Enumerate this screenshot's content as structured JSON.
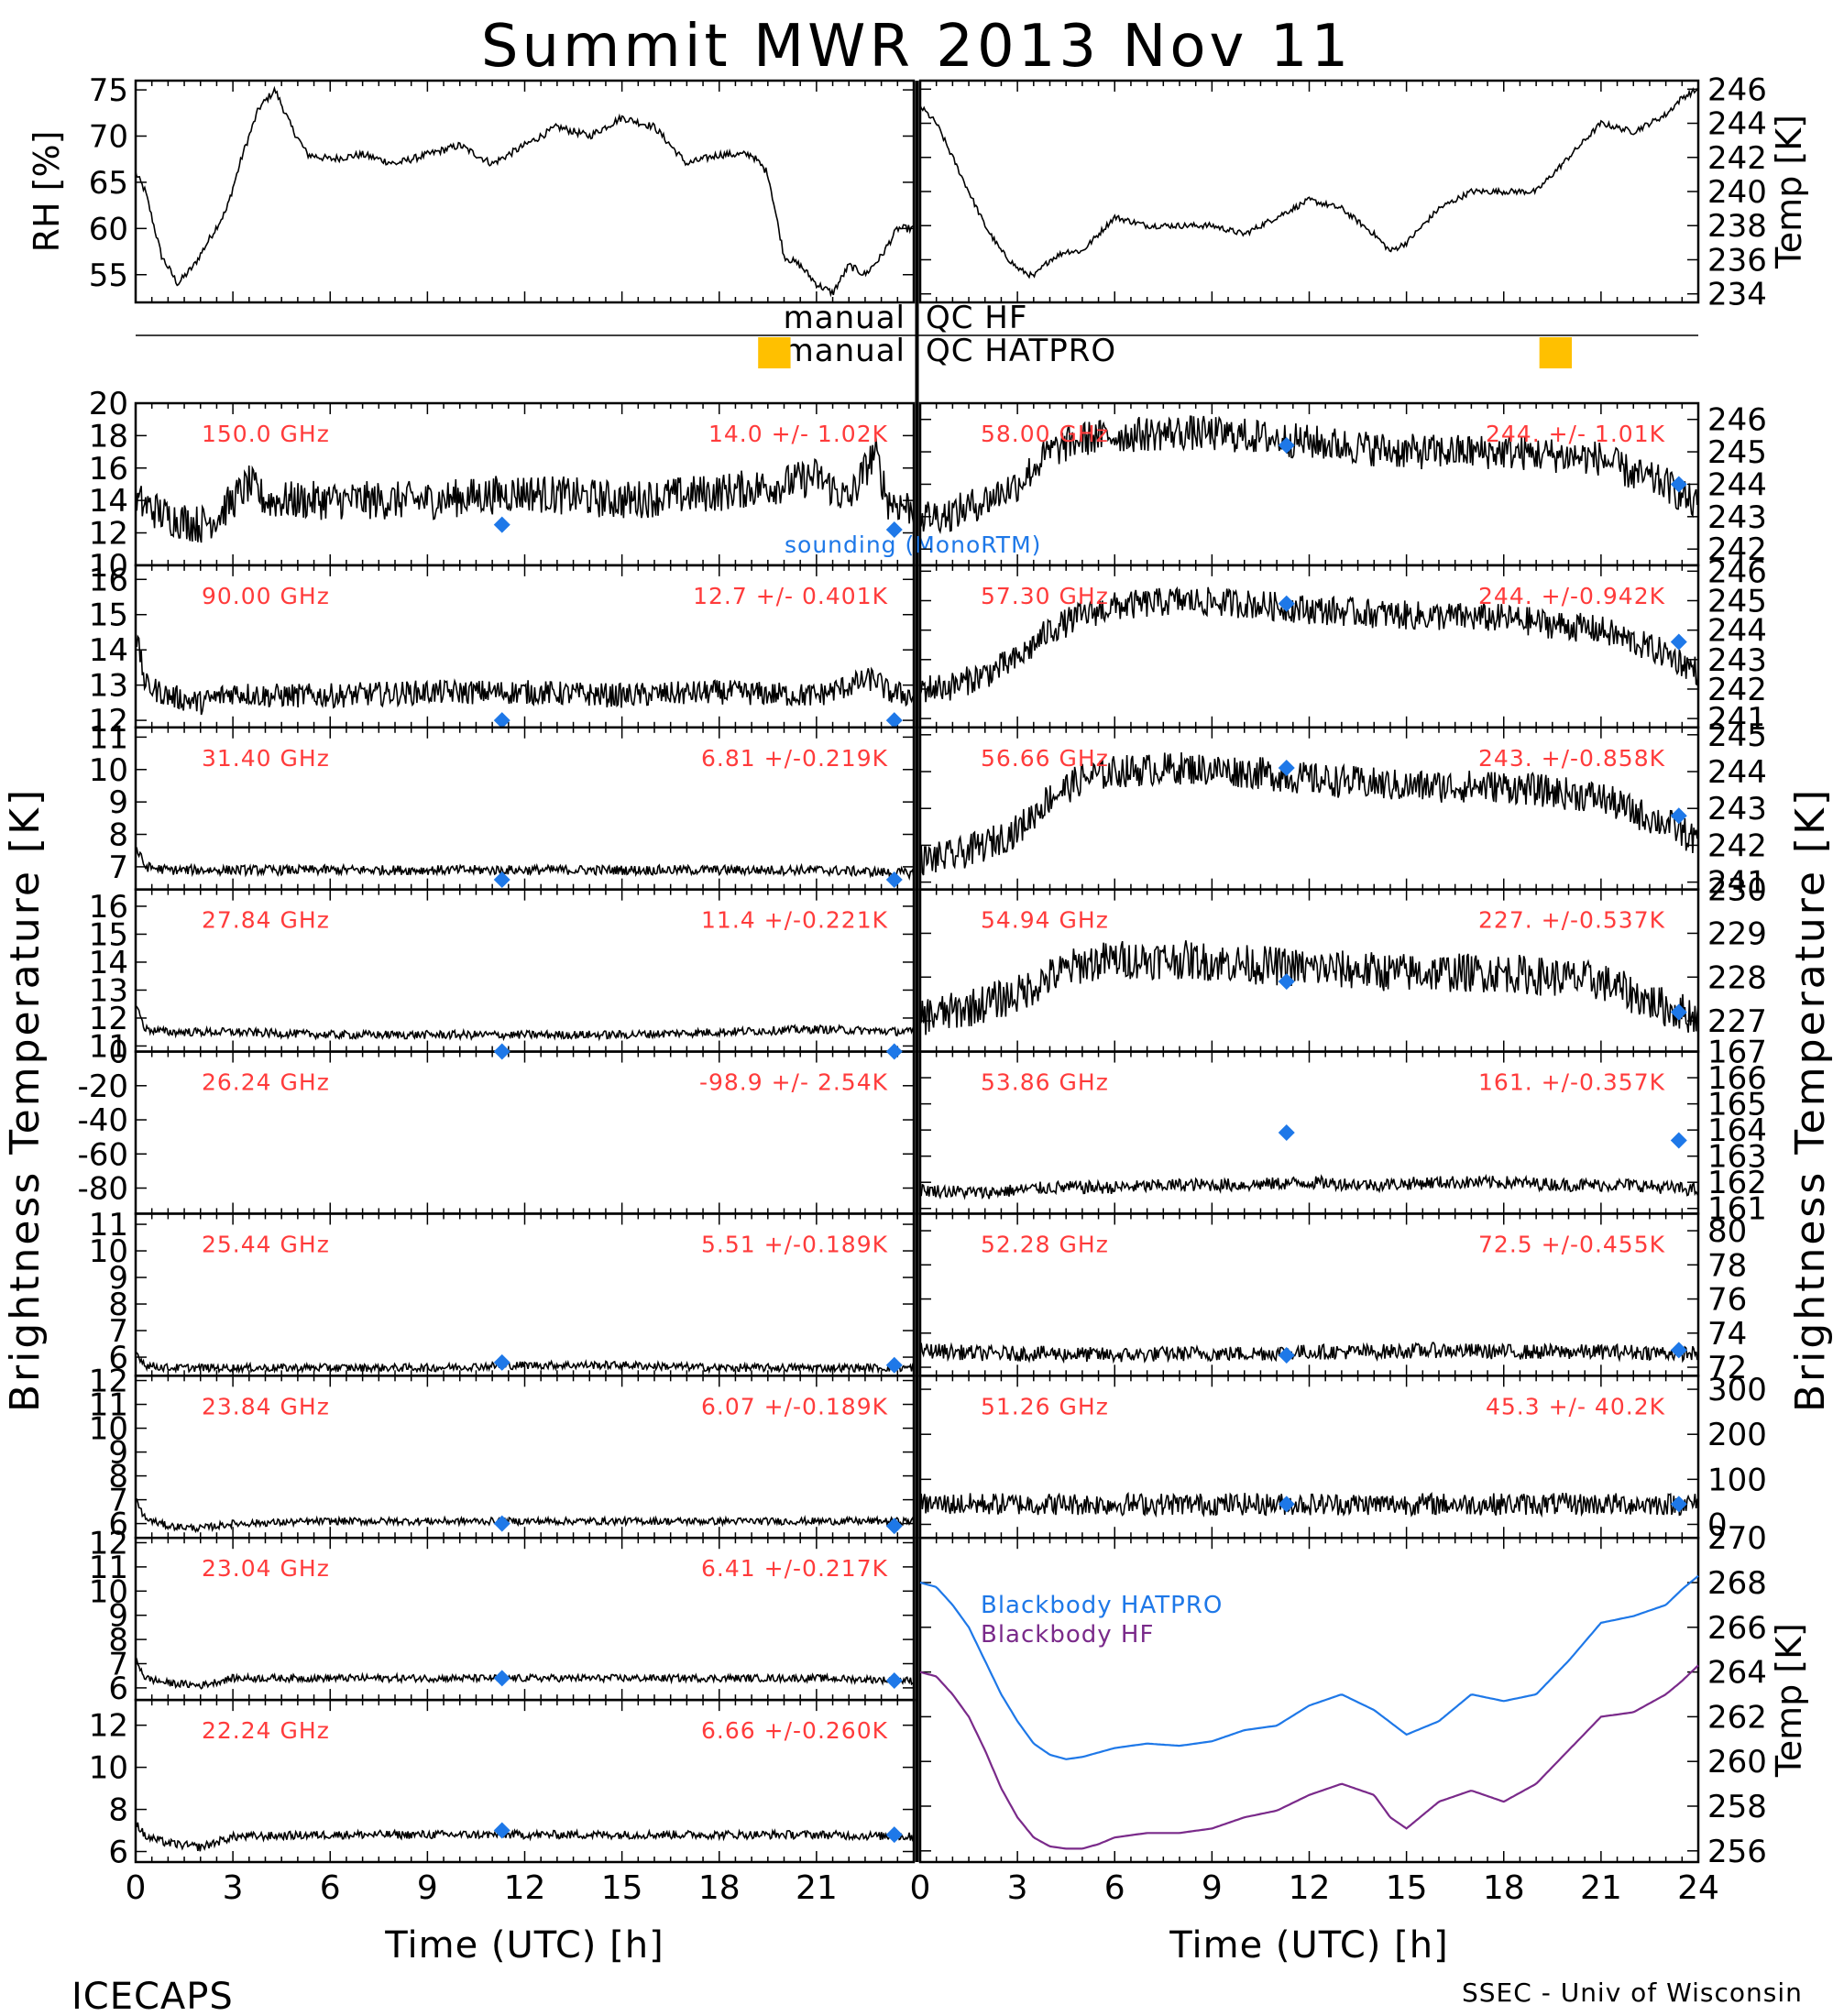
{
  "page": {
    "title": "Summit MWR 2013 Nov 11",
    "footer_left": "ICECAPS",
    "footer_right": "SSEC - Univ of Wisconsin",
    "left_axis_label": "Brightness Temperature [K]",
    "right_axis_label": "Brightness Temperature [K]",
    "colors": {
      "channel_text": "#ff3b3b",
      "sounding": "#1e78e8",
      "qc_flag": "#ffc000",
      "blackbody_hatpro": "#1e78e8",
      "blackbody_hf": "#7a2a8a"
    }
  },
  "met": {
    "rh": {
      "ylabel": "RH [%]",
      "ylim": [
        52,
        76
      ],
      "yticks": [
        55,
        60,
        65,
        70,
        75
      ],
      "x": [
        0,
        0.3,
        0.8,
        1.3,
        1.8,
        2.3,
        2.8,
        3.3,
        3.8,
        4.3,
        4.8,
        5.3,
        6,
        7,
        8,
        9,
        10,
        11,
        12,
        13,
        14,
        15,
        16,
        17,
        18,
        19,
        19.5,
        20,
        20.5,
        21,
        21.5,
        22,
        22.5,
        23,
        23.5
      ],
      "y": [
        66,
        64,
        57,
        54,
        56,
        59,
        62,
        68,
        73,
        75,
        71,
        68,
        67.5,
        68,
        67,
        68,
        69,
        67,
        69,
        71,
        70,
        72,
        71,
        67,
        68,
        68,
        66,
        57,
        56,
        54,
        53,
        56,
        55,
        57,
        60
      ]
    },
    "temp": {
      "ylabel": "Temp [K]",
      "ylim": [
        233.5,
        246.5
      ],
      "yticks": [
        234,
        236,
        238,
        240,
        242,
        244,
        246
      ],
      "x": [
        0,
        0.5,
        1,
        1.5,
        2,
        2.5,
        3,
        3.5,
        4,
        4.5,
        5,
        6,
        7,
        8,
        9,
        10,
        11,
        12,
        13,
        14,
        14.5,
        15,
        16,
        17,
        18,
        19,
        19.5,
        20,
        20.5,
        21,
        22,
        23,
        23.5,
        24
      ],
      "y": [
        245,
        244,
        242,
        240,
        238,
        236.5,
        235.5,
        235,
        236,
        236.5,
        236.5,
        238.5,
        238,
        238,
        238,
        237.5,
        238.5,
        239.5,
        239,
        237.5,
        236.5,
        237,
        239,
        240,
        240,
        240,
        241,
        242,
        243,
        244,
        243.5,
        244.5,
        245.5,
        246
      ]
    }
  },
  "qc": {
    "hf_label": "manual QC HF",
    "hatpro_label": "manual QC HATPRO",
    "hf_flags": [],
    "hatpro_flags": [
      [
        19.2,
        20.2
      ],
      [
        43.1,
        44.1
      ]
    ]
  },
  "chart_data": {
    "type": "line",
    "x_range": [
      0,
      24
    ],
    "xticks": [
      0,
      3,
      6,
      9,
      12,
      15,
      18,
      21,
      24
    ],
    "xlabel_left": "Time (UTC) [h]",
    "xlabel_right": "Time (UTC) [h]",
    "sounding_label": "sounding (MonoRTM)",
    "sounding_times": [
      11.3,
      23.4
    ],
    "left_channels": [
      {
        "freq": "150.0 GHz",
        "stat": "14.0 +/- 1.02K",
        "ylim": [
          10,
          20
        ],
        "yticks": [
          10,
          12,
          14,
          16,
          18,
          20
        ],
        "x": [
          0,
          0.5,
          1,
          2,
          2.5,
          3,
          3.5,
          4,
          6,
          9,
          12,
          15,
          18,
          20,
          21,
          22,
          22.8,
          23.2,
          24
        ],
        "y": [
          14,
          13.5,
          13,
          12.5,
          13,
          14,
          15,
          14,
          14,
          14,
          14.5,
          14,
          14.5,
          15,
          15.5,
          14,
          17,
          14,
          13.5
        ],
        "noise": 1.2,
        "sounding": [
          12.5,
          12.2
        ]
      },
      {
        "freq": "90.00 GHz",
        "stat": "12.7 +/- 0.401K",
        "ylim": [
          11.8,
          16.4
        ],
        "yticks": [
          12,
          13,
          14,
          15,
          16
        ],
        "x": [
          0,
          0.3,
          1,
          2,
          3,
          4,
          6,
          9,
          12,
          15,
          18,
          21,
          22.8,
          23.2,
          24
        ],
        "y": [
          14.5,
          13,
          12.7,
          12.5,
          12.8,
          12.7,
          12.7,
          12.8,
          12.8,
          12.7,
          12.8,
          12.7,
          13.2,
          12.8,
          12.7
        ],
        "noise": 0.35,
        "sounding": [
          12,
          12
        ]
      },
      {
        "freq": "31.40 GHz",
        "stat": "6.81 +/-0.219K",
        "ylim": [
          6.3,
          11.3
        ],
        "yticks": [
          7,
          8,
          9,
          10,
          11
        ],
        "x": [
          0,
          0.3,
          1,
          3,
          6,
          9,
          12,
          15,
          18,
          21,
          24
        ],
        "y": [
          7.6,
          7,
          6.9,
          6.9,
          6.9,
          6.9,
          6.9,
          6.9,
          6.9,
          6.9,
          6.8
        ],
        "noise": 0.15,
        "sounding": [
          6.6,
          6.6
        ]
      },
      {
        "freq": "27.84 GHz",
        "stat": "11.4 +/-0.221K",
        "ylim": [
          10.8,
          16.6
        ],
        "yticks": [
          11,
          12,
          13,
          14,
          15,
          16
        ],
        "x": [
          0,
          0.3,
          1,
          3,
          6,
          9,
          12,
          15,
          18,
          21,
          24
        ],
        "y": [
          12.5,
          11.6,
          11.5,
          11.5,
          11.4,
          11.4,
          11.4,
          11.4,
          11.5,
          11.6,
          11.5
        ],
        "noise": 0.15,
        "sounding": [
          10.7,
          10.7
        ]
      },
      {
        "freq": "26.24 GHz",
        "stat": "-98.9 +/- 2.54K",
        "ylim": [
          -95,
          0
        ],
        "yticks": [
          -80,
          -60,
          -40,
          -20,
          0
        ],
        "x": [],
        "y": [],
        "noise": 0,
        "sounding": [
          0,
          0
        ]
      },
      {
        "freq": "25.44 GHz",
        "stat": "5.51 +/-0.189K",
        "ylim": [
          5.3,
          11.4
        ],
        "yticks": [
          6,
          7,
          8,
          9,
          10,
          11
        ],
        "x": [
          0,
          0.3,
          1,
          3,
          6,
          9,
          12,
          15,
          18,
          21,
          24
        ],
        "y": [
          6.2,
          5.7,
          5.6,
          5.6,
          5.6,
          5.6,
          5.7,
          5.7,
          5.6,
          5.6,
          5.6
        ],
        "noise": 0.15,
        "sounding": [
          5.8,
          5.7
        ]
      },
      {
        "freq": "23.84 GHz",
        "stat": "6.07 +/-0.189K",
        "ylim": [
          5.4,
          12.2
        ],
        "yticks": [
          6,
          7,
          8,
          9,
          10,
          11,
          12
        ],
        "x": [
          0,
          0.3,
          1,
          2,
          3,
          6,
          9,
          12,
          15,
          18,
          21,
          24
        ],
        "y": [
          7,
          6.2,
          5.9,
          5.8,
          6,
          6.1,
          6.1,
          6.1,
          6.1,
          6.1,
          6.1,
          6.1
        ],
        "noise": 0.15,
        "sounding": [
          6,
          5.9
        ]
      },
      {
        "freq": "23.04 GHz",
        "stat": "6.41 +/-0.217K",
        "ylim": [
          5.5,
          12.2
        ],
        "yticks": [
          6,
          7,
          8,
          9,
          10,
          11,
          12
        ],
        "x": [
          0,
          0.3,
          1,
          2,
          3,
          6,
          9,
          12,
          15,
          18,
          21,
          24
        ],
        "y": [
          7.2,
          6.4,
          6.2,
          6.1,
          6.4,
          6.4,
          6.4,
          6.4,
          6.4,
          6.4,
          6.4,
          6.3
        ],
        "noise": 0.15,
        "sounding": [
          6.4,
          6.3
        ]
      },
      {
        "freq": "22.24 GHz",
        "stat": "6.66 +/-0.260K",
        "ylim": [
          5.5,
          13.2
        ],
        "yticks": [
          6,
          8,
          10,
          12
        ],
        "x": [
          0,
          0.3,
          1,
          2,
          3,
          6,
          9,
          12,
          15,
          18,
          21,
          24
        ],
        "y": [
          7.4,
          6.7,
          6.4,
          6.2,
          6.7,
          6.8,
          6.8,
          6.8,
          6.8,
          6.8,
          6.8,
          6.7
        ],
        "noise": 0.2,
        "sounding": [
          7,
          6.8
        ]
      }
    ],
    "right_channels": [
      {
        "freq": "58.00 GHz",
        "stat": "244. +/- 1.01K",
        "ylim": [
          241.5,
          246.5
        ],
        "yticks": [
          242,
          243,
          244,
          245,
          246
        ],
        "x": [
          0,
          1,
          2,
          3,
          4,
          5,
          6,
          8,
          10,
          12,
          15,
          18,
          21,
          22,
          23,
          24
        ],
        "y": [
          243,
          243.1,
          243.5,
          244,
          245,
          245.4,
          245.5,
          245.6,
          245.5,
          245.3,
          245,
          245,
          244.8,
          244.3,
          244,
          243.3
        ],
        "noise": 0.55,
        "sounding": [
          245.2,
          244
        ]
      },
      {
        "freq": "57.30 GHz",
        "stat": "244. +/-0.942K",
        "ylim": [
          240.7,
          246.2
        ],
        "yticks": [
          241,
          242,
          243,
          244,
          245,
          246
        ],
        "x": [
          0,
          1,
          2,
          3,
          4,
          5,
          6,
          8,
          10,
          12,
          15,
          18,
          21,
          22,
          23,
          24
        ],
        "y": [
          242,
          242.1,
          242.5,
          243,
          244,
          244.5,
          244.8,
          245,
          244.9,
          244.7,
          244.5,
          244.4,
          244,
          243.6,
          243.2,
          242.6
        ],
        "noise": 0.5,
        "sounding": [
          244.9,
          243.6
        ]
      },
      {
        "freq": "56.66 GHz",
        "stat": "243. +/-0.858K",
        "ylim": [
          240.8,
          245.2
        ],
        "yticks": [
          241,
          242,
          243,
          244,
          245
        ],
        "x": [
          0,
          1,
          2,
          3,
          4,
          5,
          6,
          8,
          10,
          12,
          15,
          18,
          21,
          22,
          23,
          24
        ],
        "y": [
          241.6,
          241.7,
          242,
          242.4,
          243.3,
          243.8,
          244,
          244.1,
          244,
          243.8,
          243.6,
          243.6,
          243.3,
          242.9,
          242.6,
          242.1
        ],
        "noise": 0.45,
        "sounding": [
          244.1,
          242.8
        ]
      },
      {
        "freq": "54.94 GHz",
        "stat": "227. +/-0.537K",
        "ylim": [
          226.3,
          230
        ],
        "yticks": [
          227,
          228,
          229,
          230
        ],
        "x": [
          0,
          1,
          2,
          3,
          4,
          5,
          6,
          8,
          10,
          12,
          15,
          18,
          21,
          22,
          23,
          24
        ],
        "y": [
          227.1,
          227.2,
          227.4,
          227.6,
          228,
          228.3,
          228.4,
          228.4,
          228.3,
          228.2,
          228.1,
          228.1,
          227.9,
          227.6,
          227.3,
          227.1
        ],
        "noise": 0.45,
        "sounding": [
          227.9,
          227.2
        ]
      },
      {
        "freq": "53.86 GHz",
        "stat": "161. +/-0.357K",
        "ylim": [
          160.8,
          167
        ],
        "yticks": [
          161,
          162,
          163,
          164,
          165,
          166,
          167
        ],
        "x": [
          0,
          2,
          4,
          6,
          8,
          10,
          12,
          14,
          16,
          18,
          20,
          22,
          24
        ],
        "y": [
          161.7,
          161.6,
          161.8,
          161.8,
          161.9,
          161.9,
          162,
          161.9,
          162,
          162,
          161.9,
          161.9,
          161.7
        ],
        "noise": 0.25,
        "sounding": [
          163.9,
          163.6
        ]
      },
      {
        "freq": "52.28 GHz",
        "stat": "72.5 +/-0.455K",
        "ylim": [
          71.5,
          81
        ],
        "yticks": [
          72,
          74,
          76,
          78,
          80
        ],
        "x": [
          0,
          2,
          4,
          6,
          8,
          10,
          12,
          14,
          16,
          18,
          20,
          22,
          24
        ],
        "y": [
          73,
          72.8,
          72.8,
          72.7,
          72.8,
          72.8,
          72.9,
          72.9,
          73,
          72.9,
          72.9,
          72.9,
          72.8
        ],
        "noise": 0.45,
        "sounding": [
          72.7,
          73
        ]
      },
      {
        "freq": "51.26 GHz",
        "stat": "45.3 +/- 40.2K",
        "ylim": [
          -30,
          330
        ],
        "yticks": [
          0,
          100,
          200,
          300
        ],
        "x": [
          0,
          24
        ],
        "y": [
          45,
          45
        ],
        "noise": 25,
        "sounding": [
          45,
          45
        ]
      },
      {
        "xlabel": "",
        "ylabel": "Temp [K]",
        "ylim": [
          255.5,
          270
        ],
        "yticks": [
          256,
          258,
          260,
          262,
          264,
          266,
          268,
          270
        ],
        "series": [
          {
            "name": "Blackbody HATPRO",
            "x": [
              0,
              0.5,
              1,
              1.5,
              2,
              2.5,
              3,
              3.5,
              4,
              4.5,
              5,
              5.5,
              6,
              7,
              8,
              9,
              10,
              11,
              12,
              13,
              14,
              15,
              16,
              17,
              18,
              19,
              20,
              21,
              22,
              23,
              23.5,
              24
            ],
            "y": [
              268,
              267.8,
              267,
              266,
              264.5,
              263,
              261.8,
              260.8,
              260.3,
              260.1,
              260.2,
              260.4,
              260.6,
              260.8,
              260.7,
              260.9,
              261.4,
              261.6,
              262.5,
              263,
              262.3,
              261.2,
              261.8,
              263,
              262.7,
              263,
              264.5,
              266.2,
              266.5,
              267,
              267.7,
              268.3
            ]
          },
          {
            "name": "Blackbody HF",
            "x": [
              0,
              0.5,
              1,
              1.5,
              2,
              2.5,
              3,
              3.5,
              4,
              4.5,
              5,
              5.5,
              6,
              7,
              8,
              9,
              10,
              11,
              12,
              13,
              14,
              14.5,
              15,
              16,
              17,
              18,
              19,
              20,
              21,
              22,
              23,
              23.5,
              24
            ],
            "y": [
              264,
              263.8,
              263,
              262,
              260.5,
              258.8,
              257.5,
              256.6,
              256.2,
              256.1,
              256.1,
              256.3,
              256.6,
              256.8,
              256.8,
              257,
              257.5,
              257.8,
              258.5,
              259,
              258.5,
              257.5,
              257,
              258.2,
              258.7,
              258.2,
              259,
              260.5,
              262,
              262.2,
              263,
              263.6,
              264.3
            ]
          }
        ]
      }
    ]
  }
}
